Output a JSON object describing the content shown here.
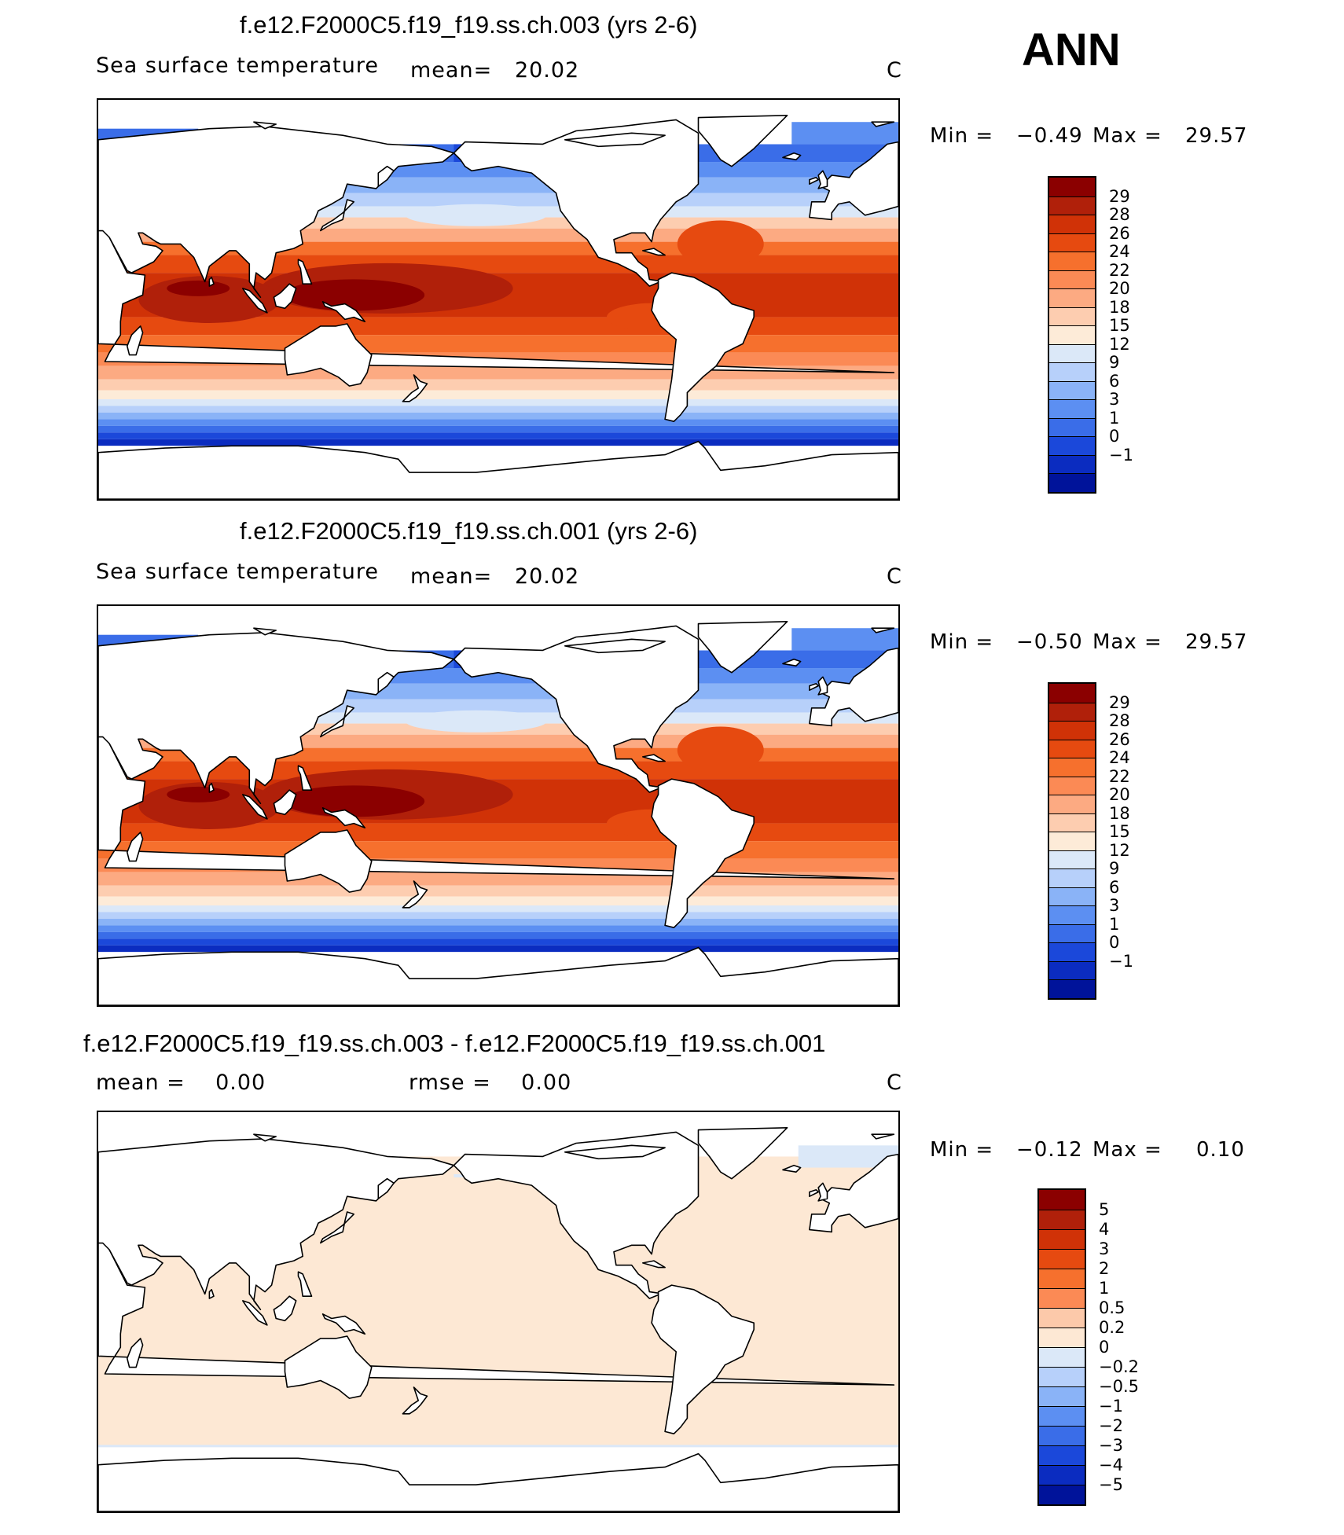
{
  "season_label": "ANN",
  "panels": [
    {
      "title": "f.e12.F2000C5.f19_f19.ss.ch.003 (yrs 2-6)",
      "left_label": "Sea surface temperature",
      "center_label": "mean=   20.02",
      "unit": "C",
      "min_label": "Min =",
      "min_value": "−0.49",
      "max_label": "Max =",
      "max_value": "29.57",
      "colorbar": {
        "ticks": [
          "29",
          "28",
          "26",
          "24",
          "22",
          "20",
          "18",
          "15",
          "12",
          "9",
          "6",
          "3",
          "1",
          "0",
          "−1"
        ],
        "colors": [
          "#8b0000",
          "#b0200a",
          "#d03207",
          "#e64a10",
          "#f6702d",
          "#fb8a55",
          "#fcaa82",
          "#fdcdb0",
          "#fdebd8",
          "#dbe8f8",
          "#b7d0fa",
          "#8ab3f7",
          "#5c8ff2",
          "#3a6de8",
          "#1b48da",
          "#0b2cc0",
          "#00139a"
        ]
      },
      "field": "sst"
    },
    {
      "title": "f.e12.F2000C5.f19_f19.ss.ch.001 (yrs 2-6)",
      "left_label": "Sea surface temperature",
      "center_label": "mean=   20.02",
      "unit": "C",
      "min_label": "Min =",
      "min_value": "−0.50",
      "max_label": "Max =",
      "max_value": "29.57",
      "colorbar": {
        "ticks": [
          "29",
          "28",
          "26",
          "24",
          "22",
          "20",
          "18",
          "15",
          "12",
          "9",
          "6",
          "3",
          "1",
          "0",
          "−1"
        ],
        "colors": [
          "#8b0000",
          "#b0200a",
          "#d03207",
          "#e64a10",
          "#f6702d",
          "#fb8a55",
          "#fcaa82",
          "#fdcdb0",
          "#fdebd8",
          "#dbe8f8",
          "#b7d0fa",
          "#8ab3f7",
          "#5c8ff2",
          "#3a6de8",
          "#1b48da",
          "#0b2cc0",
          "#00139a"
        ]
      },
      "field": "sst"
    },
    {
      "title": "f.e12.F2000C5.f19_f19.ss.ch.003 - f.e12.F2000C5.f19_f19.ss.ch.001",
      "left_label": "mean =    0.00",
      "center_label": "rmse =    0.00",
      "unit": "C",
      "min_label": "Min =",
      "min_value": "−0.12",
      "max_label": "Max =",
      "max_value": "0.10",
      "colorbar": {
        "ticks": [
          "5",
          "4",
          "3",
          "2",
          "1",
          "0.5",
          "0.2",
          "0",
          "−0.2",
          "−0.5",
          "−1",
          "−2",
          "−3",
          "−4",
          "−5"
        ],
        "colors": [
          "#8b0000",
          "#b0200a",
          "#d03207",
          "#e64a10",
          "#f6702d",
          "#fb8a55",
          "#fcc9aa",
          "#fde8d4",
          "#dbe8f8",
          "#b7d0fa",
          "#8ab3f7",
          "#5c8ff2",
          "#3a6de8",
          "#1b48da",
          "#0b2cc0",
          "#00139a"
        ]
      },
      "field": "diff"
    }
  ]
}
